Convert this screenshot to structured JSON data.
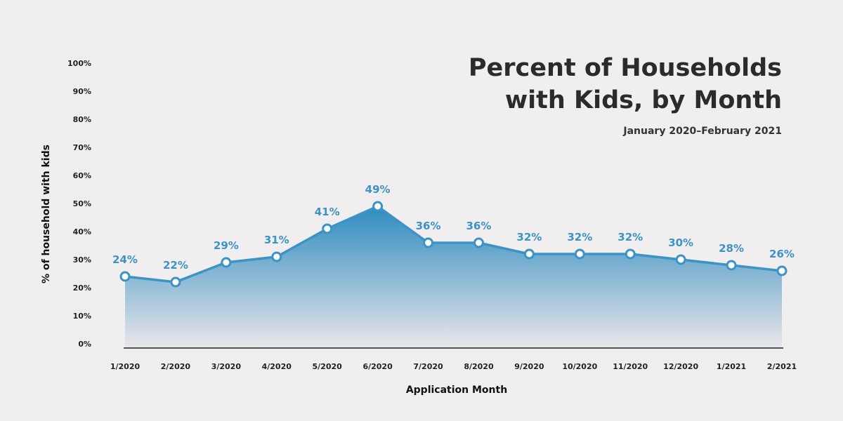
{
  "colors": {
    "background": "#f0eeef",
    "series": "#3d93c4",
    "label": "#3d93c4",
    "fill_top": "#2e8bc0",
    "fill_bottom": "#e9e7ea",
    "axis_line": "#222222",
    "marker_fill": "#ffffff"
  },
  "chart_data": {
    "type": "area",
    "title_lines": [
      "Percent of Households",
      "with Kids, by Month"
    ],
    "subtitle": "January 2020–February 2021",
    "xlabel": "Application Month",
    "ylabel": "% of household with kids",
    "ylim": [
      0,
      100
    ],
    "yticks": [
      "0%",
      "10%",
      "20%",
      "30%",
      "40%",
      "50%",
      "60%",
      "70%",
      "80%",
      "90%",
      "100%"
    ],
    "grid": false,
    "categories": [
      "1/2020",
      "2/2020",
      "3/2020",
      "4/2020",
      "5/2020",
      "6/2020",
      "7/2020",
      "8/2020",
      "9/2020",
      "10/2020",
      "11/2020",
      "12/2020",
      "1/2021",
      "2/2021"
    ],
    "values": [
      24,
      22,
      29,
      31,
      41,
      49,
      36,
      36,
      32,
      32,
      32,
      30,
      28,
      26
    ],
    "data_labels": [
      "24%",
      "22%",
      "29%",
      "31%",
      "41%",
      "49%",
      "36%",
      "36%",
      "32%",
      "32%",
      "32%",
      "30%",
      "28%",
      "26%"
    ]
  }
}
